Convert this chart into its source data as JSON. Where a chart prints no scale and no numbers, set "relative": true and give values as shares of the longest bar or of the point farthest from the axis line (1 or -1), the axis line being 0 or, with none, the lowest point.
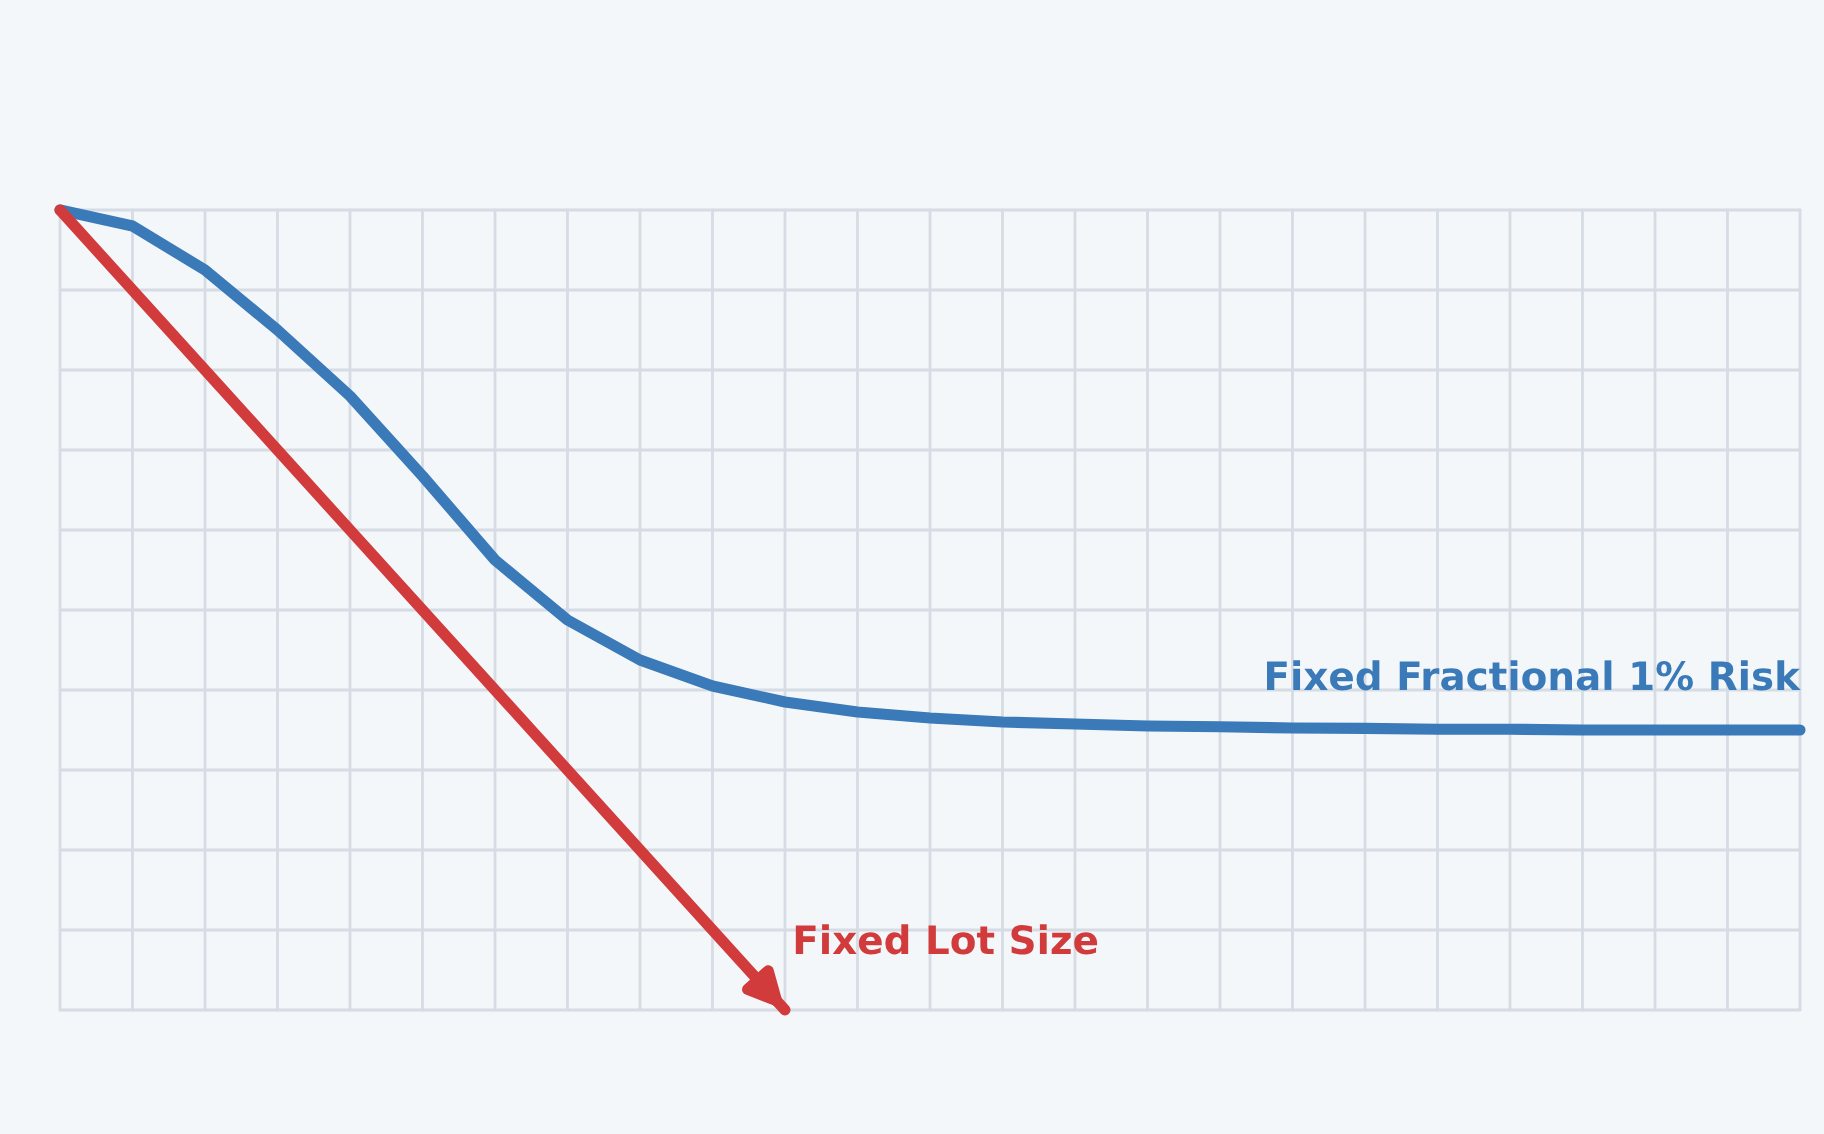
{
  "chart_data": {
    "type": "line",
    "relative": true,
    "grid": true,
    "marker": "none",
    "line_style": "solid",
    "categories": [
      null,
      null,
      null,
      null,
      null,
      null,
      null,
      null,
      null,
      null,
      null,
      null,
      null,
      null,
      null,
      null,
      null,
      null,
      null,
      null,
      null,
      null,
      null,
      null,
      null
    ],
    "series": [
      {
        "name": "Fixed Fractional 1% Risk",
        "color": "#3a7ab8",
        "values": [
          1.0,
          0.98,
          0.925,
          0.85,
          0.7675,
          0.6675,
          0.5625,
          0.4875,
          0.4375,
          0.405,
          0.385,
          0.3725,
          0.365,
          0.36,
          0.3575,
          0.355,
          0.354,
          0.3525,
          0.352,
          0.351,
          0.351,
          0.35,
          0.35,
          0.35,
          0.35
        ]
      },
      {
        "name": "Fixed Lot Size",
        "color": "#d13b3b",
        "values": [
          1.0,
          0.9,
          0.8,
          0.7,
          0.6,
          0.5,
          0.4,
          0.3,
          0.2,
          0.1,
          0,
          null,
          null,
          null,
          null,
          null,
          null,
          null,
          null,
          null,
          null,
          null,
          null,
          null,
          null
        ]
      }
    ]
  }
}
